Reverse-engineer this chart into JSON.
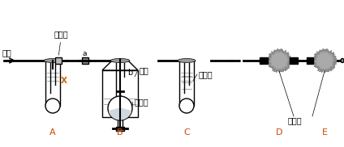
{
  "title": "",
  "bg_color": "#ffffff",
  "fig_width": 4.24,
  "fig_height": 1.82,
  "dpi": 100,
  "labels": {
    "kongqi": "空气",
    "danhuangjiajia": "弹簧夹",
    "xiliusuan": "稀硫酸",
    "a": "a",
    "b": "b",
    "X": "X",
    "chunajian": "纯碱",
    "nongliusuan": "浓硫酸",
    "jiashihui": "碱石灰",
    "A": "A",
    "B": "B",
    "C": "C",
    "D": "D",
    "E": "E"
  },
  "colors": {
    "black": "#000000",
    "gray": "#888888",
    "darkgray": "#555555",
    "lightgray": "#cccccc",
    "orange": "#ff8800",
    "white": "#ffffff",
    "tube_fill": "#e8e8e8",
    "liquid": "#d0d8e0",
    "solid": "#b0a090"
  }
}
